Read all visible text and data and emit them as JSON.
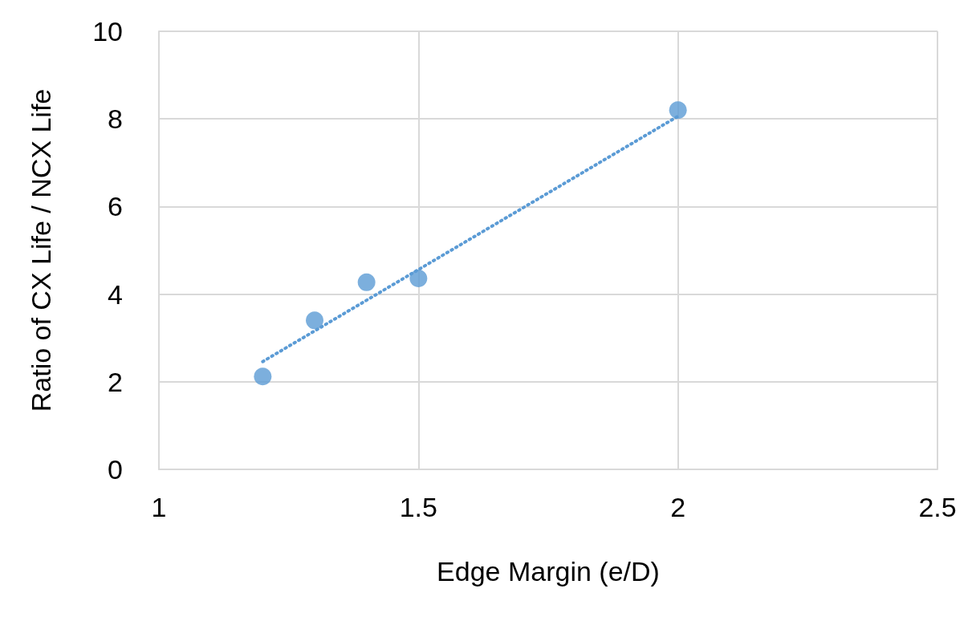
{
  "chart_data": {
    "type": "scatter",
    "xlabel": "Edge Margin (e/D)",
    "ylabel": "Ratio of CX Life / NCX Life",
    "xlim": [
      1,
      2.5
    ],
    "xticks": [
      1,
      1.5,
      2,
      2.5
    ],
    "ylim": [
      0,
      10
    ],
    "yticks": [
      0,
      2,
      4,
      6,
      8,
      10
    ],
    "grid": true,
    "marker": "circle",
    "series": [
      {
        "color": "#5b9bd5",
        "x": [
          1.2,
          1.3,
          1.4,
          1.5,
          2.0
        ],
        "values": [
          2.12,
          3.4,
          4.27,
          4.36,
          8.2
        ]
      },
      {
        "type": "line",
        "color": "#5b9bd5",
        "marker": "none",
        "line_style": "dotted",
        "x": [
          1.2,
          2.0
        ],
        "values": [
          2.46,
          8.06
        ]
      }
    ]
  }
}
